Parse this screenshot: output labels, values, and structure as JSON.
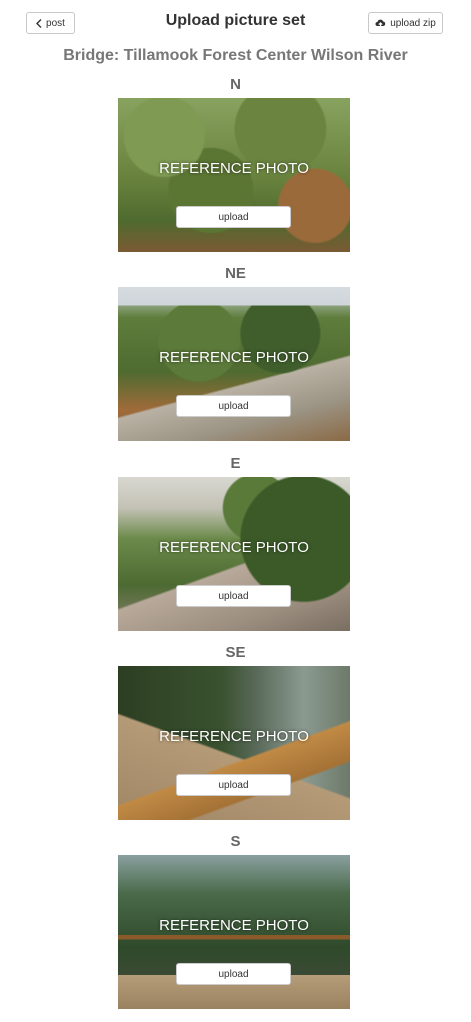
{
  "header": {
    "back_label": "post",
    "title": "Upload picture set",
    "upload_zip_label": "upload zip"
  },
  "subtitle": "Bridge: Tillamook Forest Center Wilson River",
  "sets": [
    {
      "direction": "N",
      "overlay": "REFERENCE PHOTO",
      "upload_label": "upload"
    },
    {
      "direction": "NE",
      "overlay": "REFERENCE PHOTO",
      "upload_label": "upload"
    },
    {
      "direction": "E",
      "overlay": "REFERENCE PHOTO",
      "upload_label": "upload"
    },
    {
      "direction": "SE",
      "overlay": "REFERENCE PHOTO",
      "upload_label": "upload"
    },
    {
      "direction": "S",
      "overlay": "REFERENCE PHOTO",
      "upload_label": "upload"
    }
  ],
  "icons": {
    "back": "chevron-left-icon",
    "upload_zip": "cloud-upload-icon"
  }
}
